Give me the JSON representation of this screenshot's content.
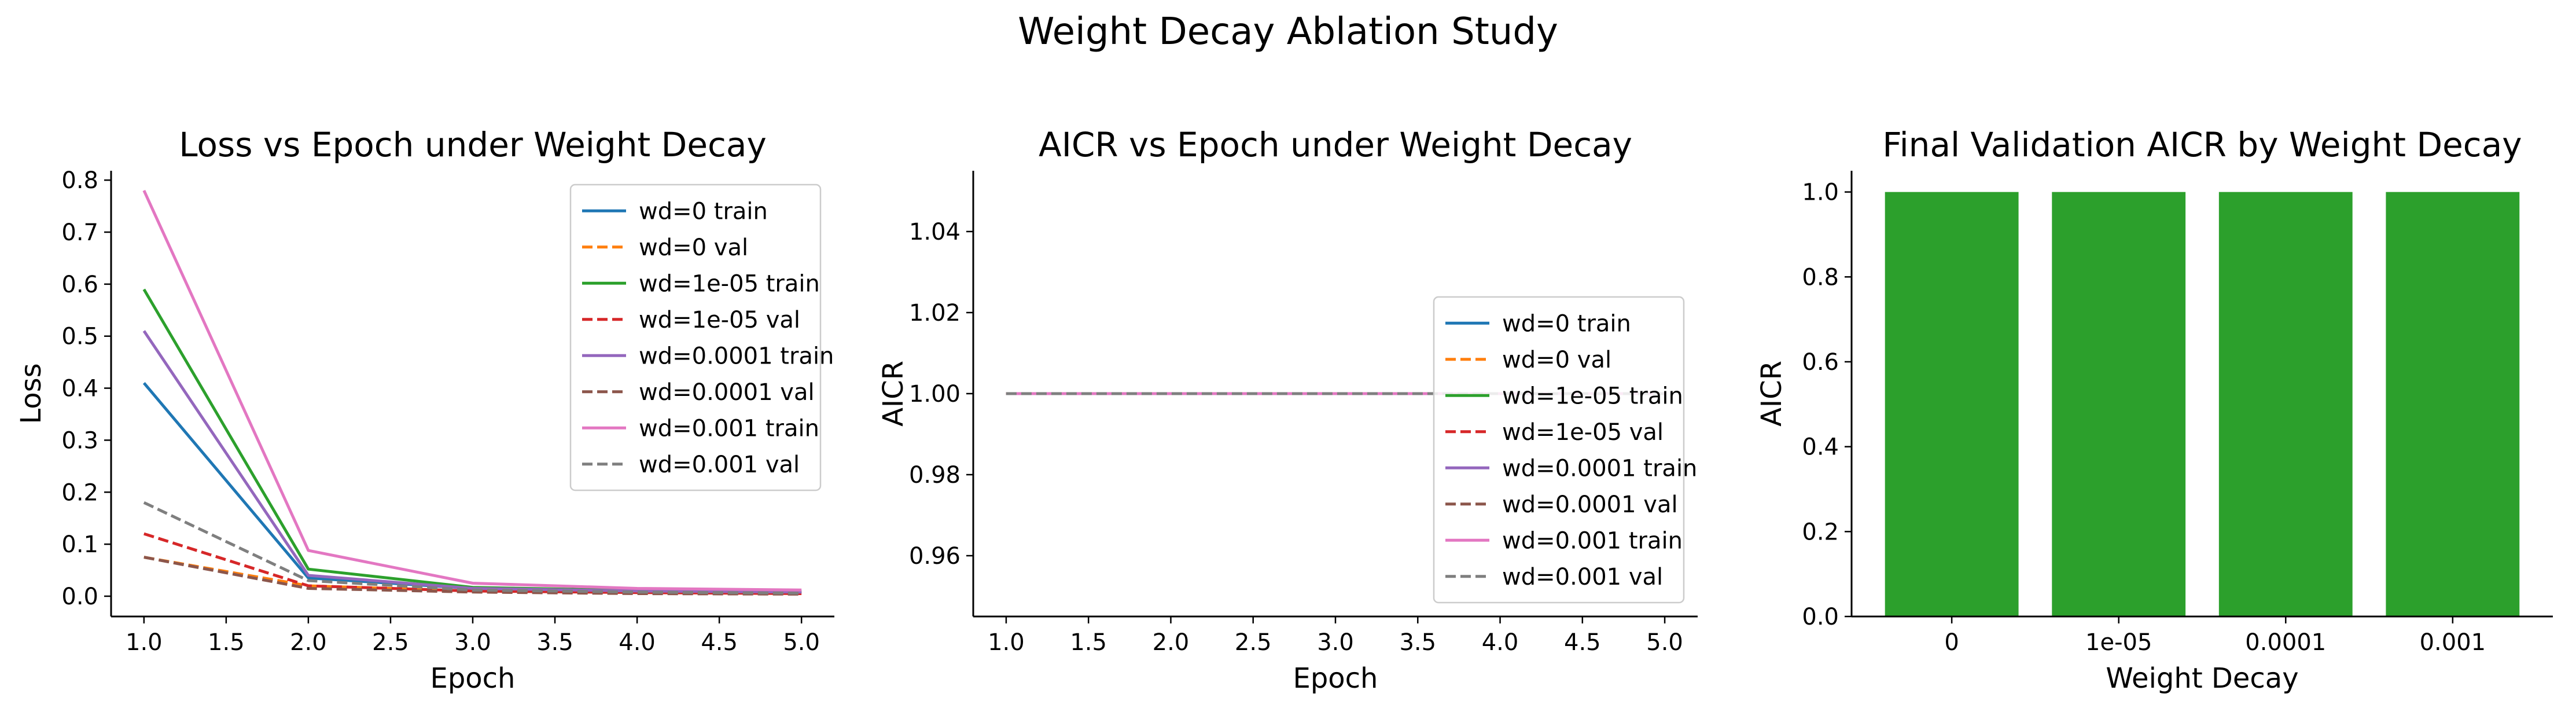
{
  "suptitle": "Weight Decay Ablation Study",
  "chart_data": [
    {
      "type": "line",
      "title": "Loss vs Epoch under Weight Decay",
      "xlabel": "Epoch",
      "ylabel": "Loss",
      "xlim": [
        0.8,
        5.2
      ],
      "ylim": [
        -0.039,
        0.818
      ],
      "xticks": [
        "1.0",
        "1.5",
        "2.0",
        "2.5",
        "3.0",
        "3.5",
        "4.0",
        "4.5",
        "5.0"
      ],
      "yticks": [
        "0.0",
        "0.1",
        "0.2",
        "0.3",
        "0.4",
        "0.5",
        "0.6",
        "0.7",
        "0.8"
      ],
      "legend_position": "upper right",
      "grid": false,
      "x": [
        1,
        2,
        3,
        4,
        5
      ],
      "series": [
        {
          "name": "wd=0 train",
          "color": "#1f77b4",
          "dash": "solid",
          "values": [
            0.41,
            0.035,
            0.015,
            0.01,
            0.008
          ]
        },
        {
          "name": "wd=0 val",
          "color": "#ff7f0e",
          "dash": "dashed",
          "values": [
            0.075,
            0.02,
            0.01,
            0.007,
            0.005
          ]
        },
        {
          "name": "wd=1e-05 train",
          "color": "#2ca02c",
          "dash": "solid",
          "values": [
            0.59,
            0.052,
            0.017,
            0.011,
            0.009
          ]
        },
        {
          "name": "wd=1e-05 val",
          "color": "#d62728",
          "dash": "dashed",
          "values": [
            0.12,
            0.02,
            0.01,
            0.007,
            0.005
          ]
        },
        {
          "name": "wd=0.0001 train",
          "color": "#9467bd",
          "dash": "solid",
          "values": [
            0.51,
            0.04,
            0.015,
            0.01,
            0.008
          ]
        },
        {
          "name": "wd=0.0001 val",
          "color": "#8c564b",
          "dash": "dashed",
          "values": [
            0.075,
            0.015,
            0.008,
            0.005,
            0.004
          ]
        },
        {
          "name": "wd=0.001 train",
          "color": "#e377c2",
          "dash": "solid",
          "values": [
            0.78,
            0.088,
            0.025,
            0.015,
            0.012
          ]
        },
        {
          "name": "wd=0.001 val",
          "color": "#7f7f7f",
          "dash": "dashed",
          "values": [
            0.18,
            0.03,
            0.012,
            0.008,
            0.006
          ]
        }
      ]
    },
    {
      "type": "line",
      "title": "AICR vs Epoch under Weight Decay",
      "xlabel": "Epoch",
      "ylabel": "AICR",
      "xlim": [
        0.8,
        5.2
      ],
      "ylim": [
        0.945,
        1.055
      ],
      "xticks": [
        "1.0",
        "1.5",
        "2.0",
        "2.5",
        "3.0",
        "3.5",
        "4.0",
        "4.5",
        "5.0"
      ],
      "yticks": [
        "0.96",
        "0.98",
        "1.00",
        "1.02",
        "1.04"
      ],
      "legend_position": "lower right",
      "grid": false,
      "x": [
        1,
        2,
        3,
        4,
        5
      ],
      "series": [
        {
          "name": "wd=0 train",
          "color": "#1f77b4",
          "dash": "solid",
          "values": [
            1,
            1,
            1,
            1,
            1
          ]
        },
        {
          "name": "wd=0 val",
          "color": "#ff7f0e",
          "dash": "dashed",
          "values": [
            1,
            1,
            1,
            1,
            1
          ]
        },
        {
          "name": "wd=1e-05 train",
          "color": "#2ca02c",
          "dash": "solid",
          "values": [
            1,
            1,
            1,
            1,
            1
          ]
        },
        {
          "name": "wd=1e-05 val",
          "color": "#d62728",
          "dash": "dashed",
          "values": [
            1,
            1,
            1,
            1,
            1
          ]
        },
        {
          "name": "wd=0.0001 train",
          "color": "#9467bd",
          "dash": "solid",
          "values": [
            1,
            1,
            1,
            1,
            1
          ]
        },
        {
          "name": "wd=0.0001 val",
          "color": "#8c564b",
          "dash": "dashed",
          "values": [
            1,
            1,
            1,
            1,
            1
          ]
        },
        {
          "name": "wd=0.001 train",
          "color": "#e377c2",
          "dash": "solid",
          "values": [
            1,
            1,
            1,
            1,
            1
          ]
        },
        {
          "name": "wd=0.001 val",
          "color": "#7f7f7f",
          "dash": "dashed",
          "values": [
            1,
            1,
            1,
            1,
            1
          ]
        }
      ]
    },
    {
      "type": "bar",
      "title": "Final Validation AICR by Weight Decay",
      "xlabel": "Weight Decay",
      "ylabel": "AICR",
      "ylim": [
        0,
        1.05
      ],
      "yticks": [
        "0.0",
        "0.2",
        "0.4",
        "0.6",
        "0.8",
        "1.0"
      ],
      "categories": [
        "0",
        "1e-05",
        "0.0001",
        "0.001"
      ],
      "values": [
        1.0,
        1.0,
        1.0,
        1.0
      ],
      "color": "#2ca02c",
      "grid": false
    }
  ]
}
